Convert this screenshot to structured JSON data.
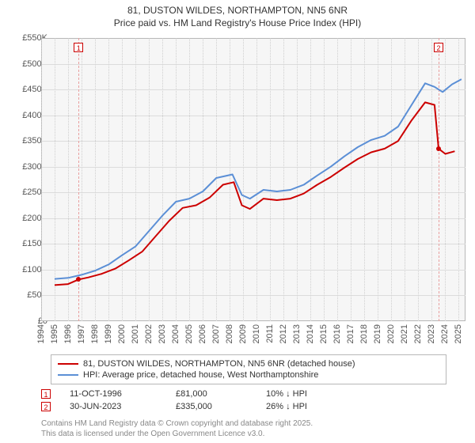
{
  "title_line1": "81, DUSTON WILDES, NORTHAMPTON, NN5 6NR",
  "title_line2": "Price paid vs. HM Land Registry's House Price Index (HPI)",
  "chart": {
    "type": "line",
    "background_color": "#f6f6f6",
    "border_color": "#b7b7b7",
    "grid_color": "#dcdcdc",
    "vgrid_color": "#cfcfcf",
    "x_years": [
      1994,
      1995,
      1996,
      1997,
      1998,
      1999,
      2000,
      2001,
      2002,
      2003,
      2004,
      2005,
      2006,
      2007,
      2008,
      2009,
      2010,
      2011,
      2012,
      2013,
      2014,
      2015,
      2016,
      2017,
      2018,
      2019,
      2020,
      2021,
      2022,
      2023,
      2024,
      2025
    ],
    "xlim": [
      1994,
      2025.5
    ],
    "ylim": [
      0,
      550000
    ],
    "ytick_step": 50000,
    "ytick_labels": [
      "£0",
      "£50K",
      "£100K",
      "£150K",
      "£200K",
      "£250K",
      "£300K",
      "£350K",
      "£400K",
      "£450K",
      "£500K",
      "£550K"
    ],
    "axis_label_color": "#555555",
    "axis_label_fontsize": 11,
    "line_width": 2,
    "series": [
      {
        "name": "81, DUSTON WILDES, NORTHAMPTON, NN5 6NR (detached house)",
        "color": "#cc0000",
        "points": [
          [
            1995.0,
            70000
          ],
          [
            1996.0,
            72000
          ],
          [
            1996.78,
            81000
          ],
          [
            1997.5,
            85000
          ],
          [
            1998.5,
            92000
          ],
          [
            1999.5,
            102000
          ],
          [
            2000.5,
            118000
          ],
          [
            2001.5,
            135000
          ],
          [
            2002.5,
            165000
          ],
          [
            2003.5,
            195000
          ],
          [
            2004.5,
            220000
          ],
          [
            2005.5,
            225000
          ],
          [
            2006.5,
            240000
          ],
          [
            2007.5,
            265000
          ],
          [
            2008.3,
            270000
          ],
          [
            2008.9,
            225000
          ],
          [
            2009.5,
            218000
          ],
          [
            2010.5,
            238000
          ],
          [
            2011.5,
            235000
          ],
          [
            2012.5,
            238000
          ],
          [
            2013.5,
            248000
          ],
          [
            2014.5,
            265000
          ],
          [
            2015.5,
            280000
          ],
          [
            2016.5,
            298000
          ],
          [
            2017.5,
            315000
          ],
          [
            2018.5,
            328000
          ],
          [
            2019.5,
            335000
          ],
          [
            2020.5,
            350000
          ],
          [
            2021.5,
            390000
          ],
          [
            2022.5,
            425000
          ],
          [
            2023.2,
            420000
          ],
          [
            2023.5,
            335000
          ],
          [
            2024.0,
            325000
          ],
          [
            2024.7,
            330000
          ]
        ]
      },
      {
        "name": "HPI: Average price, detached house, West Northamptonshire",
        "color": "#5b8fd6",
        "points": [
          [
            1995.0,
            82000
          ],
          [
            1996.0,
            84000
          ],
          [
            1997.0,
            90000
          ],
          [
            1998.0,
            98000
          ],
          [
            1999.0,
            110000
          ],
          [
            2000.0,
            128000
          ],
          [
            2001.0,
            145000
          ],
          [
            2002.0,
            175000
          ],
          [
            2003.0,
            205000
          ],
          [
            2004.0,
            232000
          ],
          [
            2005.0,
            238000
          ],
          [
            2006.0,
            252000
          ],
          [
            2007.0,
            278000
          ],
          [
            2008.2,
            285000
          ],
          [
            2008.9,
            245000
          ],
          [
            2009.5,
            238000
          ],
          [
            2010.5,
            255000
          ],
          [
            2011.5,
            252000
          ],
          [
            2012.5,
            255000
          ],
          [
            2013.5,
            265000
          ],
          [
            2014.5,
            283000
          ],
          [
            2015.5,
            300000
          ],
          [
            2016.5,
            320000
          ],
          [
            2017.5,
            338000
          ],
          [
            2018.5,
            352000
          ],
          [
            2019.5,
            360000
          ],
          [
            2020.5,
            378000
          ],
          [
            2021.5,
            420000
          ],
          [
            2022.5,
            462000
          ],
          [
            2023.2,
            455000
          ],
          [
            2023.8,
            445000
          ],
          [
            2024.5,
            460000
          ],
          [
            2025.2,
            470000
          ]
        ]
      }
    ],
    "price_markers": [
      {
        "label": "1",
        "x": 1996.78,
        "y": 81000,
        "color": "#cc0000"
      },
      {
        "label": "2",
        "x": 2023.5,
        "y": 335000,
        "color": "#cc0000"
      }
    ],
    "top_marker_boxes": [
      {
        "label": "1",
        "x": 1996.78,
        "color": "#cc0000"
      },
      {
        "label": "2",
        "x": 2023.5,
        "color": "#cc0000"
      }
    ],
    "guide_lines": [
      {
        "x": 1996.78,
        "color": "#e9a0a0"
      },
      {
        "x": 2023.5,
        "color": "#e9a0a0"
      }
    ]
  },
  "legend": {
    "items": [
      {
        "color": "#cc0000",
        "label": "81, DUSTON WILDES, NORTHAMPTON, NN5 6NR (detached house)"
      },
      {
        "color": "#5b8fd6",
        "label": "HPI: Average price, detached house, West Northamptonshire"
      }
    ]
  },
  "notes": [
    {
      "idx": "1",
      "color": "#cc0000",
      "date": "11-OCT-1996",
      "price": "£81,000",
      "delta": "10% ↓ HPI"
    },
    {
      "idx": "2",
      "color": "#cc0000",
      "date": "30-JUN-2023",
      "price": "£335,000",
      "delta": "26% ↓ HPI"
    }
  ],
  "attribution_line1": "Contains HM Land Registry data © Crown copyright and database right 2025.",
  "attribution_line2": "This data is licensed under the Open Government Licence v3.0."
}
